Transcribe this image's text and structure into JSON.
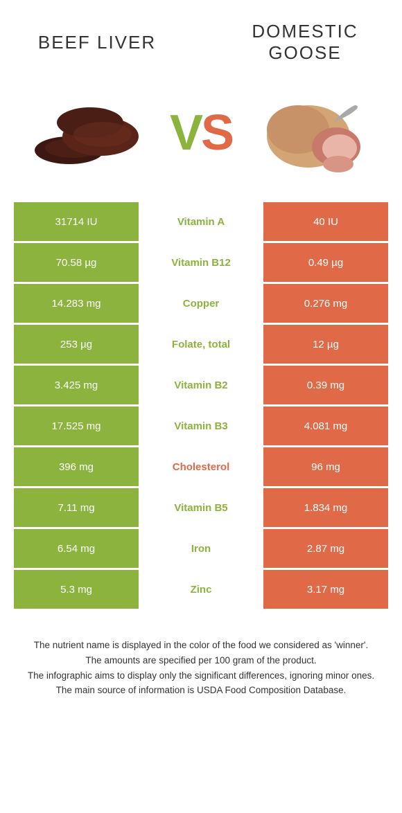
{
  "header": {
    "left_title": "Beef Liver",
    "right_title": "Domestic goose",
    "vs_v": "V",
    "vs_s": "S"
  },
  "colors": {
    "green": "#8bb33d",
    "orange": "#e06947",
    "liver_dark": "#3d1812",
    "liver_mid": "#5a2518",
    "goose_skin": "#d4a574",
    "goose_meat": "#c77a6b",
    "goose_inner": "#e8b5a8"
  },
  "rows": [
    {
      "left": "31714 IU",
      "label": "Vitamin A",
      "right": "40 IU",
      "winner": "green"
    },
    {
      "left": "70.58 µg",
      "label": "Vitamin B12",
      "right": "0.49 µg",
      "winner": "green"
    },
    {
      "left": "14.283 mg",
      "label": "Copper",
      "right": "0.276 mg",
      "winner": "green"
    },
    {
      "left": "253 µg",
      "label": "Folate, total",
      "right": "12 µg",
      "winner": "green"
    },
    {
      "left": "3.425 mg",
      "label": "Vitamin B2",
      "right": "0.39 mg",
      "winner": "green"
    },
    {
      "left": "17.525 mg",
      "label": "Vitamin B3",
      "right": "4.081 mg",
      "winner": "green"
    },
    {
      "left": "396 mg",
      "label": "Cholesterol",
      "right": "96 mg",
      "winner": "orange"
    },
    {
      "left": "7.11 mg",
      "label": "Vitamin B5",
      "right": "1.834 mg",
      "winner": "green"
    },
    {
      "left": "6.54 mg",
      "label": "Iron",
      "right": "2.87 mg",
      "winner": "green"
    },
    {
      "left": "5.3 mg",
      "label": "Zinc",
      "right": "3.17 mg",
      "winner": "green"
    }
  ],
  "footer": {
    "line1": "The nutrient name is displayed in the color of the food we considered as 'winner'.",
    "line2": "The amounts are specified per 100 gram of the product.",
    "line3": "The infographic aims to display only the significant differences, ignoring minor ones.",
    "line4": "The main source of information is USDA Food Composition Database."
  }
}
